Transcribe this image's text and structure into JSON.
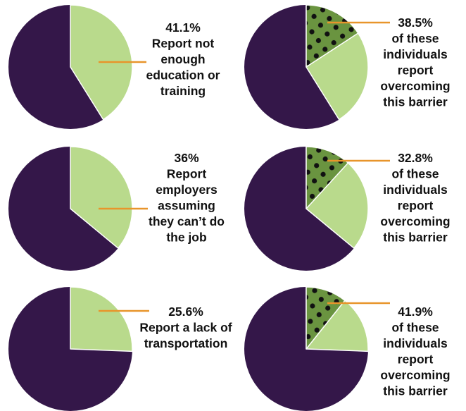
{
  "colors": {
    "background": "#ffffff",
    "remainder": "#341749",
    "barrier": "#b9da8c",
    "overcome": "#6a9440",
    "dots": "#111111",
    "leader": "#e8952b",
    "outline": "#ffffff"
  },
  "chart_data": [
    {
      "type": "pie",
      "values": [
        41.1,
        58.9
      ],
      "label_lines": [
        "41.1%",
        "Report not",
        "enough",
        "education or",
        "training"
      ]
    },
    {
      "type": "pie",
      "values": [
        36,
        64
      ],
      "label_lines": [
        "36%",
        "Report",
        "employers",
        "assuming",
        "they can’t do",
        "the job"
      ]
    },
    {
      "type": "pie",
      "values": [
        25.6,
        74.4
      ],
      "label_lines": [
        "25.6%",
        "Report a lack of",
        "transportation"
      ]
    },
    {
      "type": "pie",
      "barrier_percent": 41.1,
      "overcome_fraction_percent": 38.5,
      "label_lines": [
        "38.5%",
        "of these",
        "individuals",
        "report",
        "overcoming",
        "this barrier"
      ]
    },
    {
      "type": "pie",
      "barrier_percent": 36,
      "overcome_fraction_percent": 32.8,
      "label_lines": [
        "32.8%",
        "of these",
        "individuals",
        "report",
        "overcoming",
        "this barrier"
      ]
    },
    {
      "type": "pie",
      "barrier_percent": 25.6,
      "overcome_fraction_percent": 41.9,
      "label_lines": [
        "41.9%",
        "of these",
        "individuals",
        "report",
        "overcoming",
        "this barrier"
      ]
    }
  ]
}
